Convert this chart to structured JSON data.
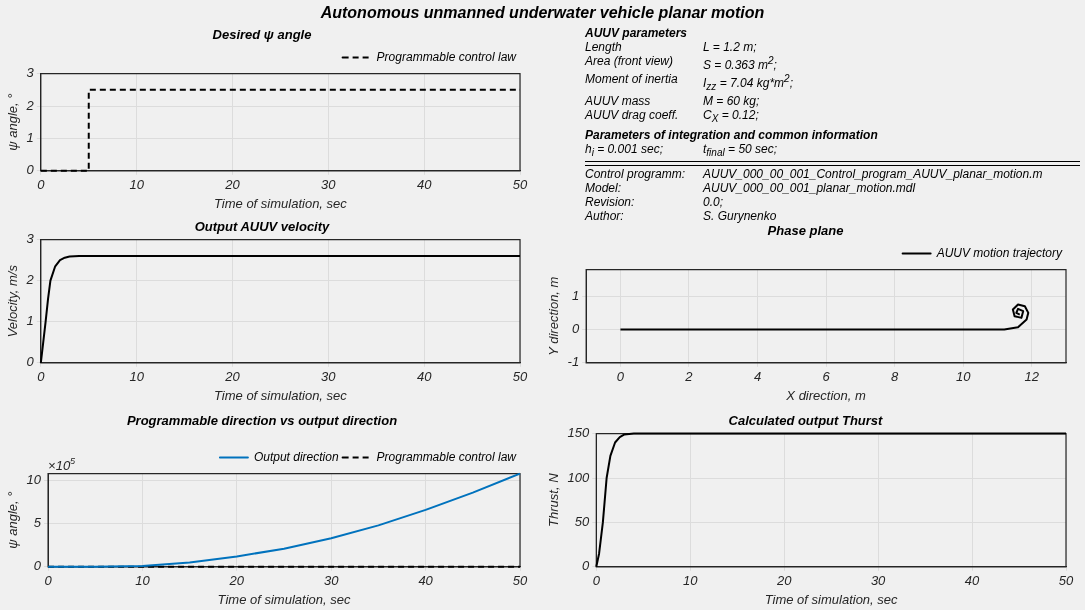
{
  "chart_data": [
    {
      "type": "other",
      "title": "Autonomous unmanned underwater vehicle planar motion"
    },
    {
      "type": "line",
      "title": "Desired ψ angle",
      "xlabel": "Time of simulation, sec",
      "ylabel": "ψ angle, °",
      "xlim": [
        0,
        50
      ],
      "xticks": [
        0,
        10,
        20,
        30,
        40,
        50
      ],
      "ylim": [
        0,
        3
      ],
      "yticks": [
        0,
        1,
        2,
        3
      ],
      "grid": true,
      "legend": "top right",
      "marker": "none",
      "series": [
        {
          "name": "Programmable control law",
          "color": "#000000",
          "line_style": "dashed",
          "x": [
            0,
            5,
            5,
            50
          ],
          "values": [
            0,
            0,
            2.5,
            2.5
          ]
        }
      ]
    },
    {
      "type": "other",
      "title": "AUUV parameters",
      "annotations": [
        "Length",
        "L = 1.2 m;",
        "Area (front view)",
        "S = 0.363 m$^{2}$;",
        "Moment of inertia",
        "I$_{zz}$ = 7.04 kg*m$^{2}$;",
        "AUUV mass",
        "M = 60 kg;",
        "AUUV drag coeff.",
        "C$_{X}$ = 0.12;"
      ]
    },
    {
      "type": "other",
      "title": "Parameters of integration and common information",
      "annotations": [
        "h$_{i}$ = 0.001 sec;",
        "t$_{final}$ = 50 sec;",
        "Control programm:",
        "AUUV_000_00_001_Control_program_AUUV_planar_motion.m",
        "Model:",
        "AUUV_000_00_001_planar_motion.mdl",
        "Revision:",
        "0.0;",
        "Author:",
        "S. Gurynenko"
      ]
    },
    {
      "type": "line",
      "title": "Output AUUV velocity",
      "xlabel": "Time of simulation, sec",
      "ylabel": "Velocity, m/s",
      "xlim": [
        0,
        50
      ],
      "xticks": [
        0,
        10,
        20,
        30,
        40,
        50
      ],
      "ylim": [
        0,
        3
      ],
      "yticks": [
        0,
        1,
        2,
        3
      ],
      "grid": true,
      "marker": "none",
      "series": [
        {
          "color": "#000000",
          "line_style": "solid",
          "x": [
            0,
            0.25,
            0.5,
            0.75,
            1,
            1.5,
            2,
            2.5,
            3,
            4,
            50
          ],
          "values": [
            0,
            0.5,
            1.0,
            1.55,
            2.0,
            2.35,
            2.5,
            2.56,
            2.59,
            2.6,
            2.6
          ]
        }
      ]
    },
    {
      "type": "line",
      "title": "Phase plane",
      "xlabel": "X direction, m",
      "ylabel": "Y direction, m",
      "xlim": [
        -1,
        13
      ],
      "xticks": [
        0,
        2,
        4,
        6,
        8,
        10,
        12
      ],
      "ylim": [
        -1,
        1.8
      ],
      "yticks": [
        -1,
        0,
        1
      ],
      "grid": true,
      "legend": "top right",
      "marker": "none",
      "series": [
        {
          "name": "AUUV motion trajectory",
          "color": "#000000",
          "line_style": "solid",
          "x": [
            0,
            11.2,
            11.6,
            11.85,
            11.9,
            11.8,
            11.6,
            11.45,
            11.5,
            11.7,
            11.75,
            11.6,
            11.55,
            11.65
          ],
          "values": [
            0,
            0,
            0.07,
            0.3,
            0.5,
            0.7,
            0.75,
            0.6,
            0.4,
            0.35,
            0.55,
            0.62,
            0.5,
            0.45
          ]
        }
      ]
    },
    {
      "type": "line",
      "title": "Programmable direction vs output direction",
      "xlabel": "Time of simulation, sec",
      "ylabel": "ψ angle, °",
      "annotations": [
        "×10$^{5}$"
      ],
      "xlim": [
        0,
        50
      ],
      "xticks": [
        0,
        10,
        20,
        30,
        40,
        50
      ],
      "ylim": [
        0,
        10.8
      ],
      "yticks": [
        0,
        5,
        10
      ],
      "grid": true,
      "legend": "top right",
      "marker": "none",
      "series": [
        {
          "name": "Output direction",
          "color": "#0072bd",
          "line_style": "solid",
          "x": [
            0,
            5,
            10,
            15,
            20,
            25,
            30,
            35,
            40,
            45,
            50
          ],
          "values": [
            0,
            0,
            0.1,
            0.5,
            1.2,
            2.1,
            3.3,
            4.8,
            6.6,
            8.6,
            10.8
          ]
        },
        {
          "name": "Programmable control law",
          "color": "#000000",
          "line_style": "dashed",
          "x": [
            0,
            50
          ],
          "values": [
            0,
            0
          ]
        }
      ]
    },
    {
      "type": "line",
      "title": "Calculated output Thurst",
      "xlabel": "Time of simulation, sec",
      "ylabel": "Thrust, N",
      "xlim": [
        0,
        50
      ],
      "xticks": [
        0,
        10,
        20,
        30,
        40,
        50
      ],
      "ylim": [
        0,
        150
      ],
      "yticks": [
        0,
        50,
        100,
        150
      ],
      "grid": true,
      "marker": "none",
      "series": [
        {
          "color": "#000000",
          "line_style": "solid",
          "x": [
            0,
            0.3,
            0.7,
            1.1,
            1.5,
            2,
            2.5,
            3,
            4,
            50
          ],
          "values": [
            0,
            15,
            50,
            100,
            125,
            140,
            146,
            149,
            150,
            150
          ]
        }
      ]
    }
  ]
}
